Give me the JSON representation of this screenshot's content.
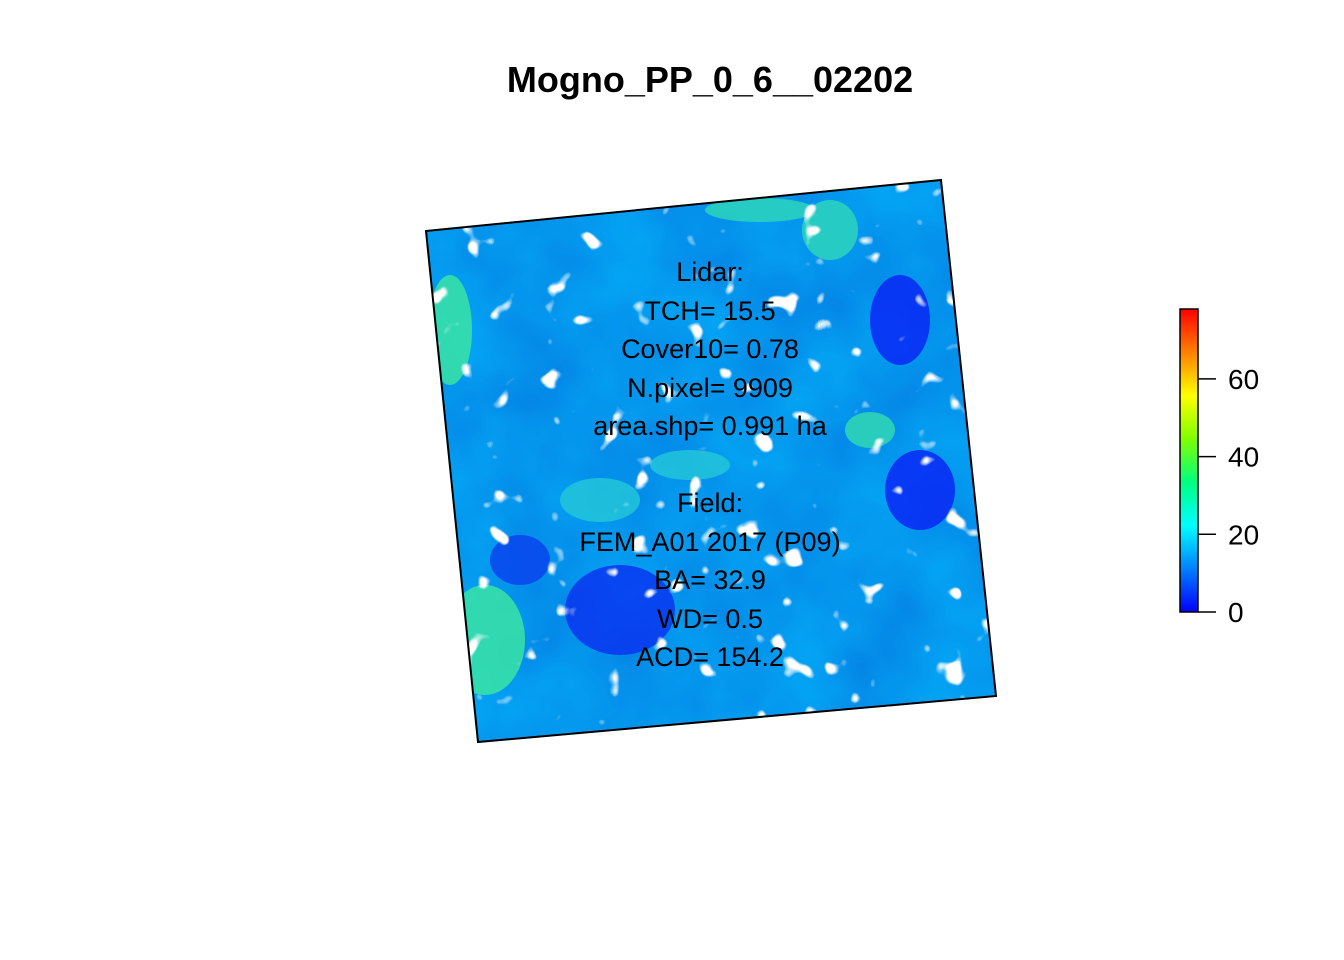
{
  "chart_data": {
    "type": "heatmap",
    "title": "Mogno_PP_0_6__02202",
    "annotations": {
      "lines": [
        "Lidar:",
        "TCH= 15.5",
        "Cover10= 0.78",
        "N.pixel= 9909",
        "area.shp= 0.991 ha",
        "",
        "Field:",
        "FEM_A01 2017 (P09)",
        "BA= 32.9",
        "WD= 0.5",
        "ACD= 154.2"
      ]
    },
    "colorbar": {
      "min": 0,
      "max": 78,
      "ticks": [
        0,
        20,
        40,
        60
      ],
      "tick_labels": [
        "0",
        "20",
        "40",
        "60"
      ],
      "palette": [
        "#0000ff",
        "#0080ff",
        "#00ffff",
        "#00ff80",
        "#80ff00",
        "#ffff00",
        "#ff8000",
        "#ff0000"
      ],
      "position": "right"
    },
    "grid": false,
    "legend_position": "right"
  }
}
